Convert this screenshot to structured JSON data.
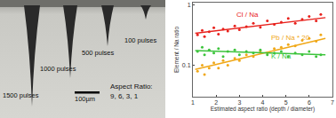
{
  "micrograph": {
    "labels": [
      "1500 pulses",
      "1000 pulses",
      "500 pulses",
      "100 pulses"
    ],
    "scale_bar": "100µm",
    "aspect_ratio_title": "Aspect Ratio:",
    "aspect_ratio_values": "9, 6, 3, 1"
  },
  "chart_data": {
    "type": "scatter",
    "x_label": "Estimated aspect ratio (depth / diameter)",
    "y_label": "Element / Na ratio",
    "log": "y",
    "grid": false,
    "xlim": [
      1,
      7
    ],
    "xticks": [
      1,
      2,
      3,
      4,
      5,
      6,
      7
    ],
    "ylim": [
      0.03,
      1.1
    ],
    "yticks": [
      0.1,
      1
    ],
    "series": [
      {
        "name": "Cl / Na",
        "color": "#e8211c",
        "x": [
          1.2,
          1.4,
          1.5,
          1.7,
          1.9,
          2.1,
          2.3,
          2.5,
          2.8,
          3.0,
          3.3,
          3.6,
          3.9,
          4.2,
          4.5,
          4.8,
          5.1,
          5.4,
          5.7,
          6.0,
          6.3,
          6.5
        ],
        "values": [
          0.32,
          0.38,
          0.3,
          0.36,
          0.42,
          0.33,
          0.4,
          0.37,
          0.45,
          0.39,
          0.44,
          0.5,
          0.43,
          0.55,
          0.48,
          0.52,
          0.6,
          0.5,
          0.58,
          0.65,
          0.55,
          0.7
        ],
        "trend": {
          "x": [
            1.1,
            6.7
          ],
          "values": [
            0.34,
            0.62
          ]
        }
      },
      {
        "name": "Pb / Na * 20",
        "color": "#f0a818",
        "x": [
          1.2,
          1.4,
          1.5,
          1.7,
          1.9,
          2.1,
          2.3,
          2.5,
          2.8,
          3.0,
          3.3,
          3.6,
          3.9,
          4.2,
          4.5,
          4.8,
          5.1,
          5.4,
          5.7,
          6.0,
          6.3,
          6.5
        ],
        "values": [
          0.08,
          0.1,
          0.07,
          0.09,
          0.11,
          0.09,
          0.12,
          0.1,
          0.13,
          0.12,
          0.15,
          0.14,
          0.17,
          0.16,
          0.19,
          0.2,
          0.22,
          0.21,
          0.26,
          0.28,
          0.25,
          0.32
        ],
        "trend": {
          "x": [
            1.1,
            6.7
          ],
          "values": [
            0.085,
            0.28
          ]
        }
      },
      {
        "name": "K / Na",
        "color": "#3cc43c",
        "x": [
          1.2,
          1.4,
          1.5,
          1.7,
          1.9,
          2.1,
          2.3,
          2.5,
          2.8,
          3.0,
          3.3,
          3.6,
          3.9,
          4.2,
          4.5,
          4.8,
          5.1,
          5.4,
          5.7,
          6.0,
          6.3,
          6.5
        ],
        "values": [
          0.17,
          0.2,
          0.15,
          0.18,
          0.16,
          0.19,
          0.14,
          0.17,
          0.18,
          0.15,
          0.17,
          0.16,
          0.18,
          0.15,
          0.16,
          0.17,
          0.14,
          0.16,
          0.15,
          0.17,
          0.14,
          0.15
        ],
        "trend": {
          "x": [
            1.1,
            6.7
          ],
          "values": [
            0.175,
            0.15
          ]
        }
      }
    ]
  }
}
